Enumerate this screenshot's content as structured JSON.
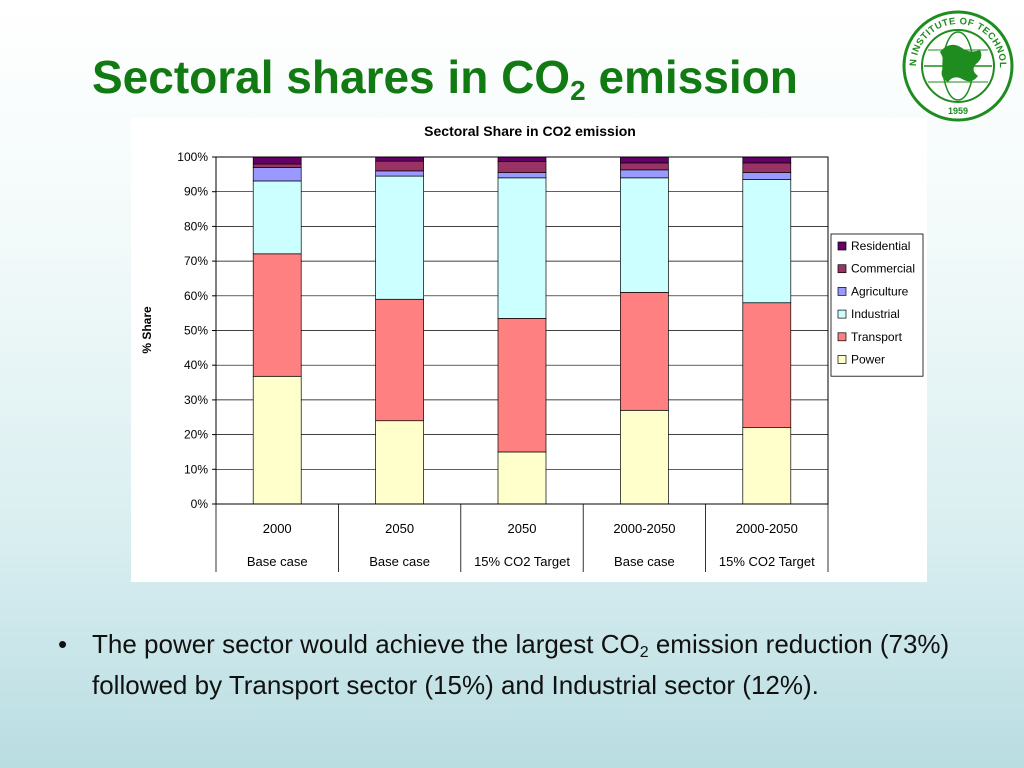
{
  "slide": {
    "title_pre": "Sectoral shares in CO",
    "title_sub": "2",
    "title_post": " emission",
    "logo": {
      "icon": "ait-seal-logo",
      "top_text": "ASIAN INSTITUTE OF TECHNOLOGY",
      "year": "1959",
      "color": "#1e8c1e"
    },
    "bullet": {
      "symbol": "•",
      "text_pre": "The power sector would achieve the largest CO",
      "text_sub": "2",
      "text_post": " emission reduction (73%) followed by Transport sector (15%) and Industrial sector (12%)."
    }
  },
  "chart_data": {
    "type": "bar",
    "stacked": true,
    "title": "Sectoral Share in CO2 emission",
    "ylabel": "% Share",
    "ylim": [
      0,
      100
    ],
    "yticks": [
      "0%",
      "10%",
      "20%",
      "30%",
      "40%",
      "50%",
      "60%",
      "70%",
      "80%",
      "90%",
      "100%"
    ],
    "grid": true,
    "legend_position": "right",
    "categories": [
      {
        "line1": "2000",
        "line2": "Base case"
      },
      {
        "line1": "2050",
        "line2": "Base case"
      },
      {
        "line1": "2050",
        "line2": "15% CO2 Target"
      },
      {
        "line1": "2000-2050",
        "line2": "Base case"
      },
      {
        "line1": "2000-2050",
        "line2": "15% CO2 Target"
      }
    ],
    "series": [
      {
        "name": "Power",
        "color": "#ffffcc",
        "values": [
          36.8,
          24,
          15,
          27,
          22
        ]
      },
      {
        "name": "Transport",
        "color": "#ff8080",
        "values": [
          35.3,
          35,
          38.5,
          34,
          36
        ]
      },
      {
        "name": "Industrial",
        "color": "#ccffff",
        "values": [
          21,
          35.5,
          40.5,
          33,
          35.5
        ]
      },
      {
        "name": "Agriculture",
        "color": "#9999ff",
        "values": [
          3.9,
          1.5,
          1.5,
          2.3,
          2
        ]
      },
      {
        "name": "Commercial",
        "color": "#993366",
        "values": [
          1,
          2.8,
          3.2,
          2,
          2.8
        ]
      },
      {
        "name": "Residential",
        "color": "#660066",
        "values": [
          2,
          1.2,
          1.3,
          1.7,
          1.7
        ]
      }
    ]
  }
}
